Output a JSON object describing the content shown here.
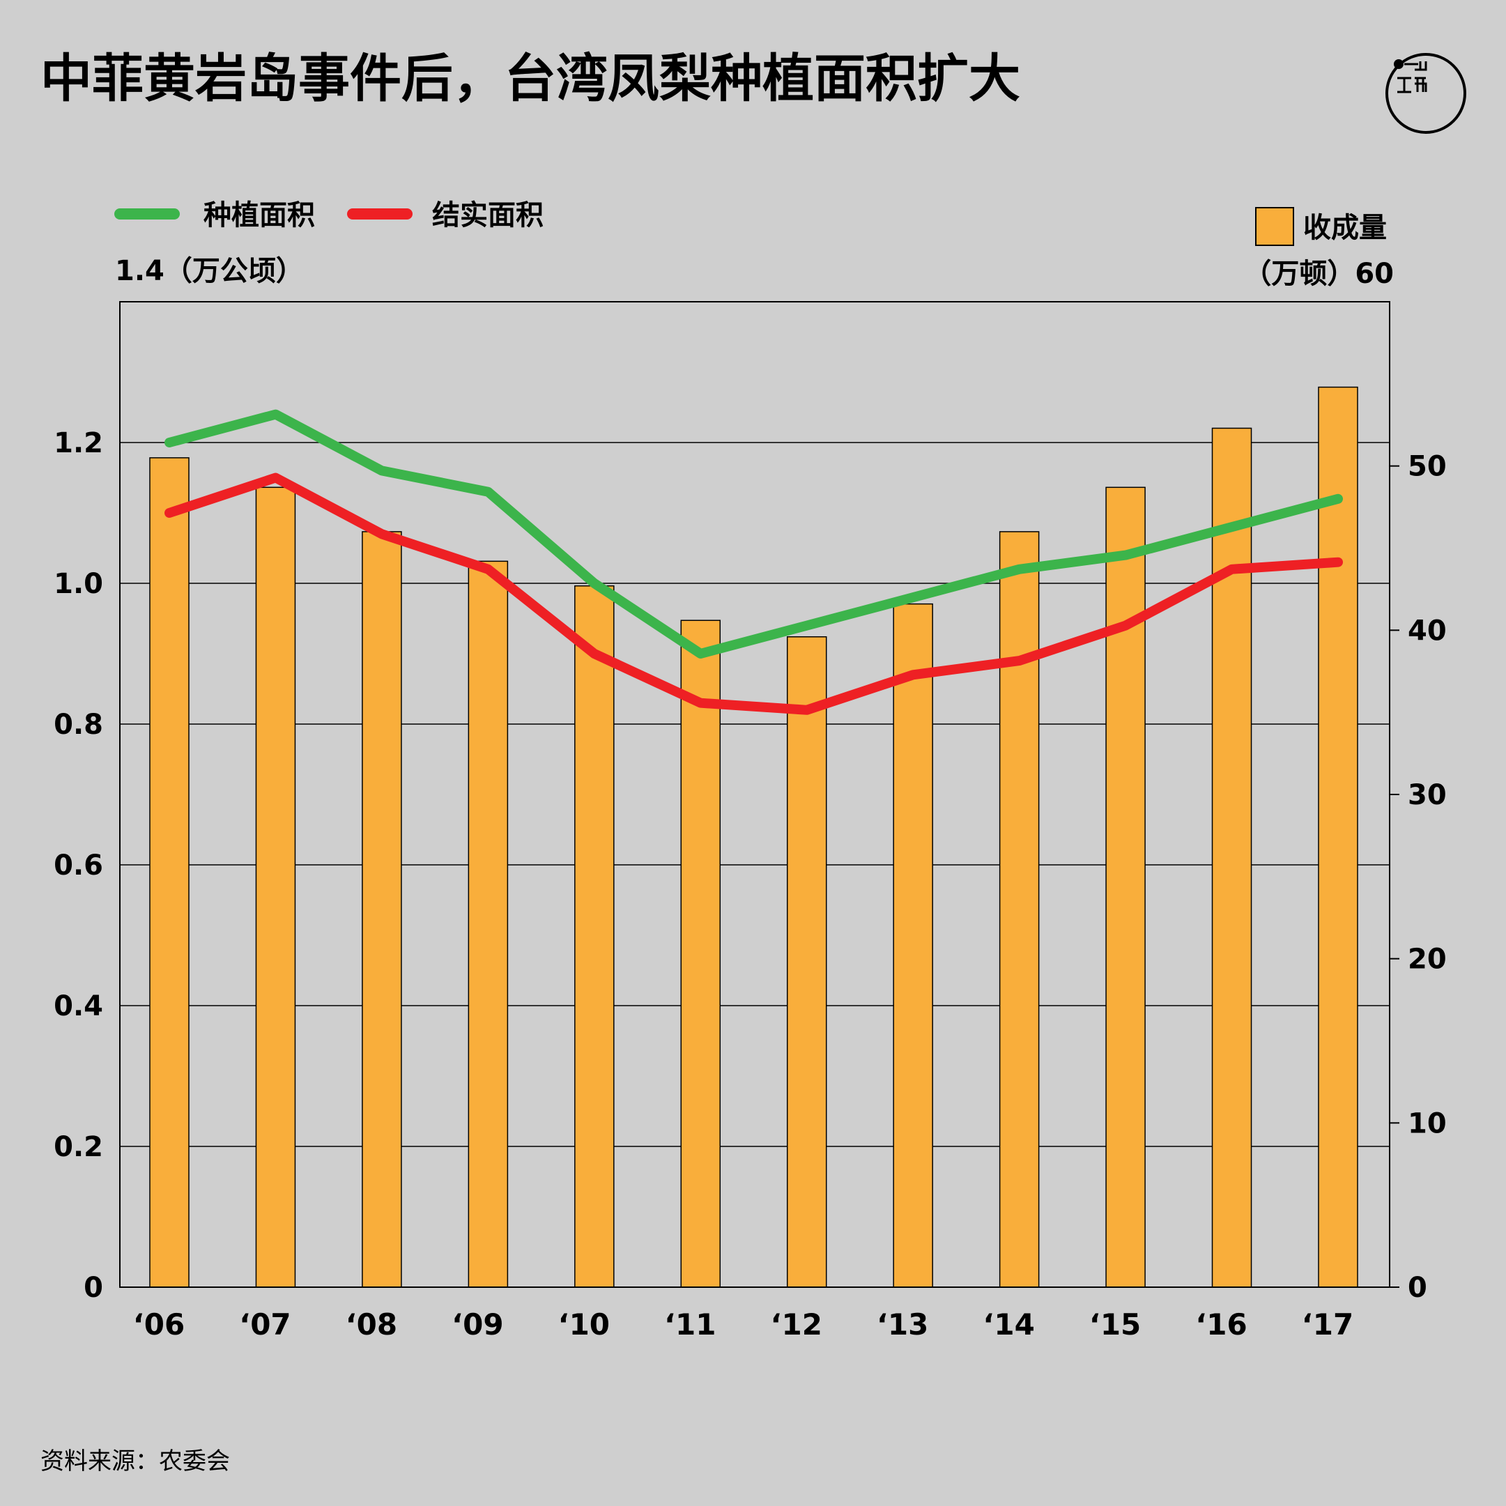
{
  "title": "中菲黄岩岛事件后，台湾凤梨种植面积扩大",
  "logo": {
    "text": "端",
    "icon": "theinitium-logo-icon"
  },
  "source": "资料来源：农委会",
  "legend": {
    "planted": "种植面积",
    "fruiting": "结实面积",
    "harvest": "收成量"
  },
  "axes": {
    "left_top_label": "1.4（万公顷）",
    "right_top_label": "（万顿）60",
    "left_ticks": [
      "0",
      "0.2",
      "0.4",
      "0.6",
      "0.8",
      "1.0",
      "1.2"
    ],
    "right_ticks": [
      "0",
      "10",
      "20",
      "30",
      "40",
      "50"
    ]
  },
  "colors": {
    "background": "#cfcfcf",
    "planted": "#3cb44b",
    "fruiting": "#ee2024",
    "harvest": "#f9ae3b"
  },
  "chart_data": {
    "type": "bar",
    "categories": [
      "‘06",
      "‘07",
      "‘08",
      "‘09",
      "‘10",
      "‘11",
      "‘12",
      "‘13",
      "‘14",
      "‘15",
      "‘16",
      "‘17"
    ],
    "series": [
      {
        "name": "收成量",
        "type": "bar",
        "axis": "right",
        "unit": "万顿",
        "values": [
          50.5,
          48.7,
          46.0,
          44.2,
          42.7,
          40.6,
          39.6,
          41.6,
          46.0,
          48.7,
          52.3,
          54.8
        ]
      },
      {
        "name": "种植面积",
        "type": "line",
        "axis": "left",
        "unit": "万公顷",
        "values": [
          1.2,
          1.24,
          1.16,
          1.13,
          1.0,
          0.9,
          0.94,
          0.98,
          1.02,
          1.04,
          1.08,
          1.12
        ]
      },
      {
        "name": "结实面积",
        "type": "line",
        "axis": "left",
        "unit": "万公顷",
        "values": [
          1.1,
          1.15,
          1.07,
          1.02,
          0.9,
          0.83,
          0.82,
          0.87,
          0.89,
          0.94,
          1.02,
          1.03
        ]
      }
    ],
    "ylim_left": [
      0,
      1.4
    ],
    "ylim_right": [
      0,
      60
    ],
    "grid": true,
    "legend_position": "top"
  }
}
